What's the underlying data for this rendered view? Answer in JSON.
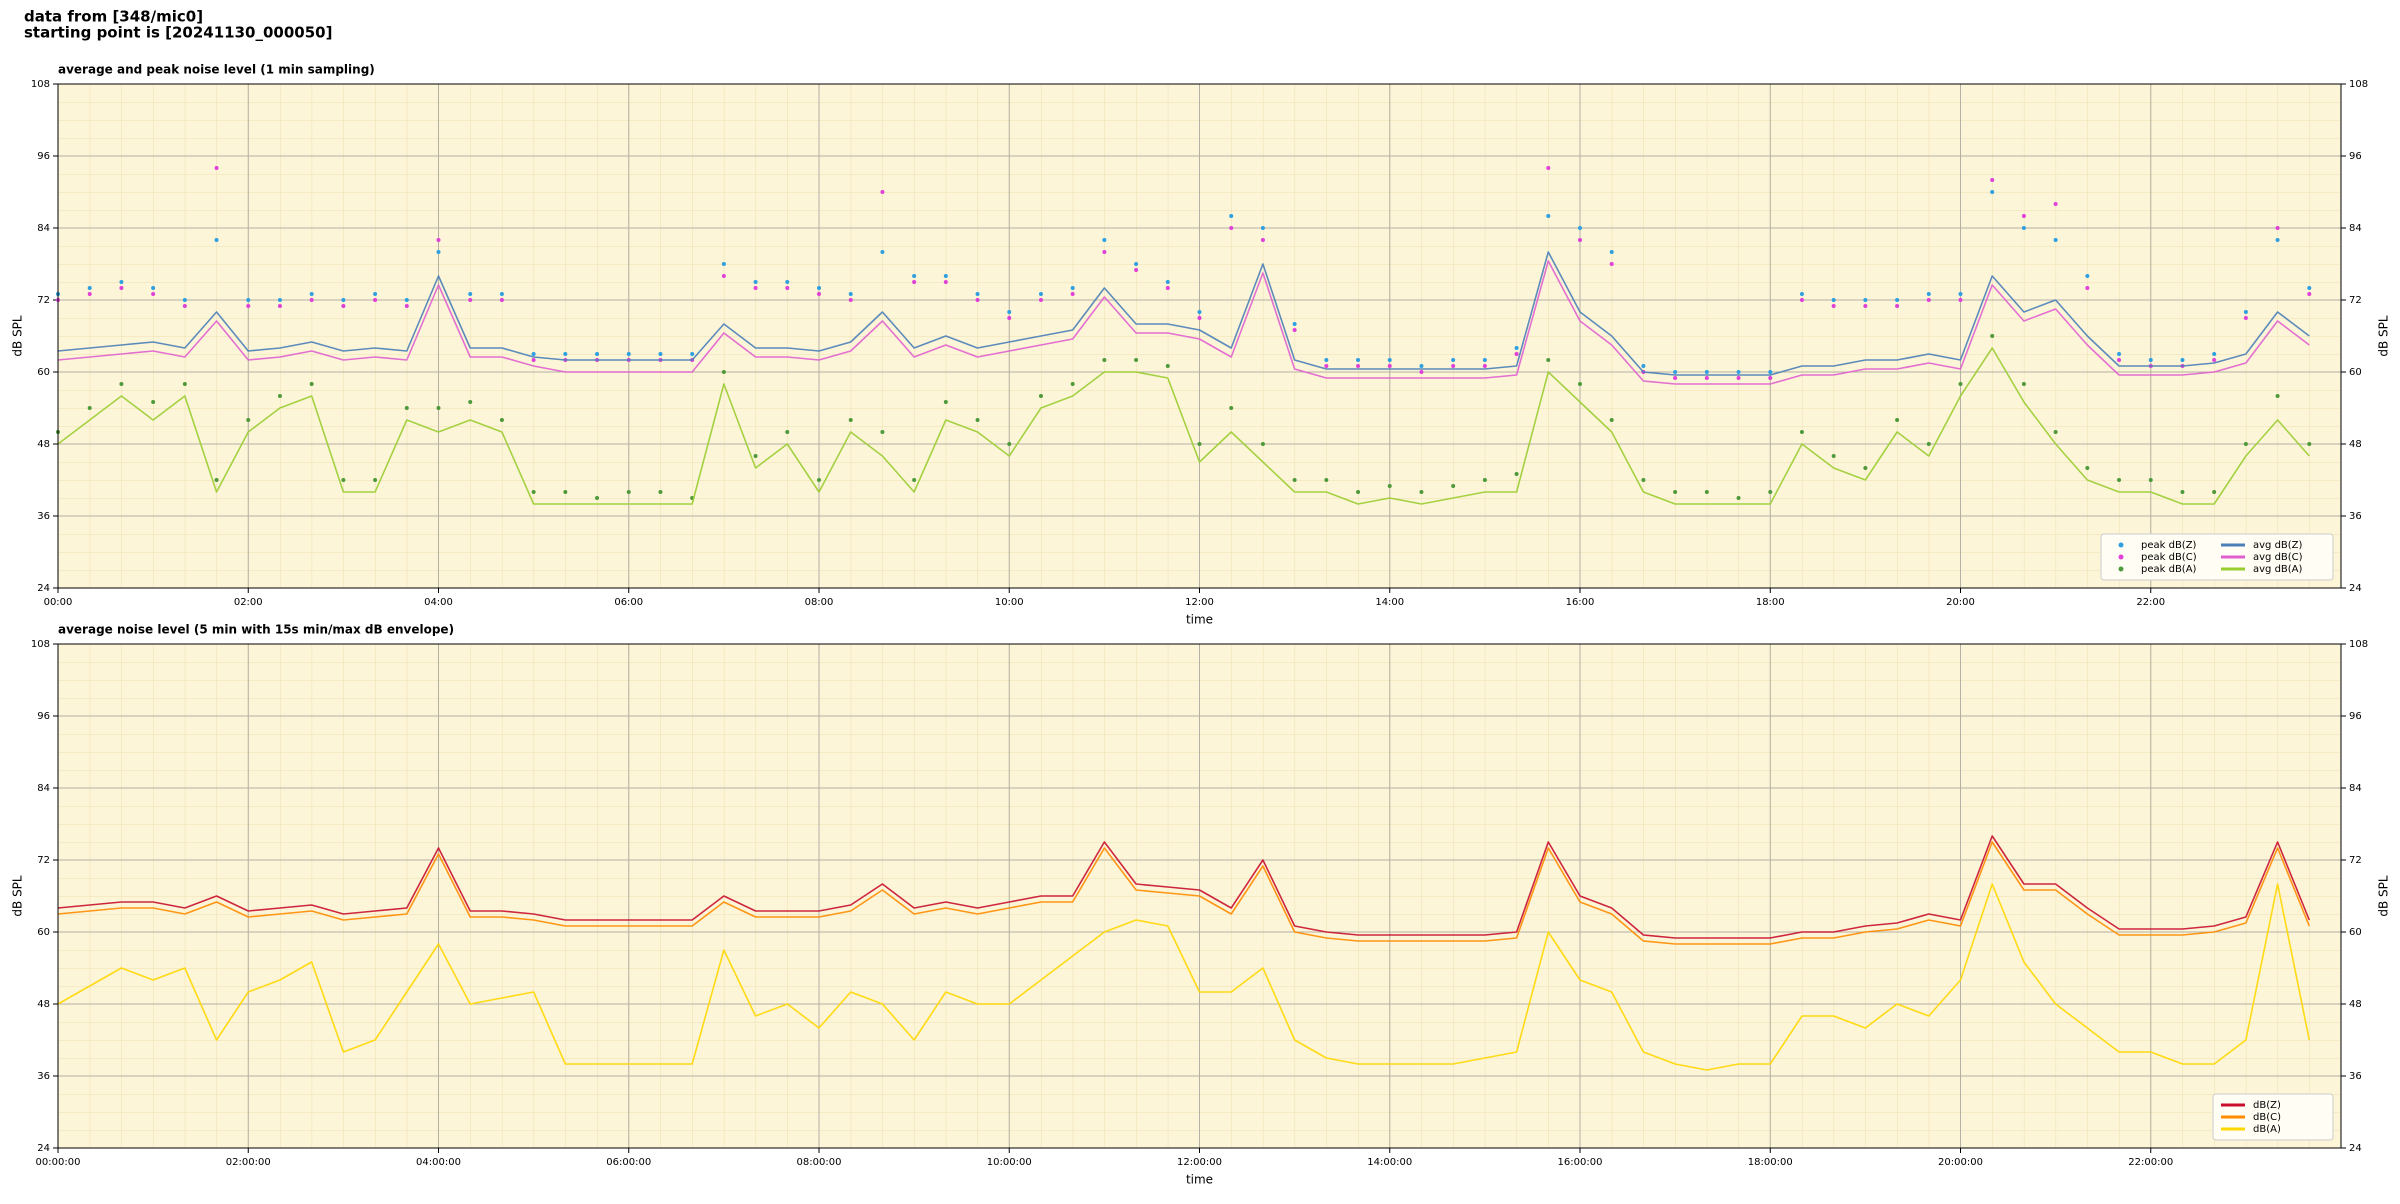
{
  "header": {
    "lines": [
      "data from [348/mic0]",
      "starting point is [20241130_000050]"
    ]
  },
  "chart_data": [
    {
      "type": "line",
      "title": "average and peak noise level (1 min sampling)",
      "xlabel": "time",
      "ylabel": "dB SPL",
      "x": [
        0,
        20,
        40,
        60,
        80,
        100,
        120,
        140,
        160,
        180,
        200,
        220,
        240,
        260,
        280,
        300,
        320,
        340,
        360,
        380,
        400,
        420,
        440,
        460,
        480,
        500,
        520,
        540,
        560,
        580,
        600,
        620,
        640,
        660,
        680,
        700,
        720,
        740,
        760,
        780,
        800,
        820,
        840,
        860,
        880,
        900,
        920,
        940,
        960,
        980,
        1000,
        1020,
        1040,
        1060,
        1080,
        1100,
        1120,
        1140,
        1160,
        1180,
        1200,
        1220,
        1240,
        1260,
        1280,
        1300,
        1320,
        1340,
        1360,
        1380,
        1400,
        1420
      ],
      "xlim": [
        0,
        1440
      ],
      "xticks": [
        {
          "value": 0,
          "label": "00:00"
        },
        {
          "value": 120,
          "label": "02:00"
        },
        {
          "value": 240,
          "label": "04:00"
        },
        {
          "value": 360,
          "label": "06:00"
        },
        {
          "value": 480,
          "label": "08:00"
        },
        {
          "value": 600,
          "label": "10:00"
        },
        {
          "value": 720,
          "label": "12:00"
        },
        {
          "value": 840,
          "label": "14:00"
        },
        {
          "value": 960,
          "label": "16:00"
        },
        {
          "value": 1080,
          "label": "18:00"
        },
        {
          "value": 1200,
          "label": "20:00"
        },
        {
          "value": 1320,
          "label": "22:00"
        }
      ],
      "ylim": [
        24,
        108
      ],
      "yticks": [
        24,
        36,
        48,
        60,
        72,
        84,
        96,
        108
      ],
      "grid": true,
      "legend": "lower right",
      "series": [
        {
          "name": "peak dB(Z)",
          "style": "dots",
          "color": "#2e9fe0",
          "values": [
            73,
            74,
            75,
            74,
            72,
            82,
            72,
            72,
            73,
            72,
            73,
            72,
            80,
            73,
            73,
            63,
            63,
            63,
            63,
            63,
            63,
            78,
            75,
            75,
            74,
            73,
            80,
            76,
            76,
            73,
            70,
            73,
            74,
            82,
            78,
            75,
            70,
            86,
            84,
            68,
            62,
            62,
            62,
            61,
            62,
            62,
            64,
            86,
            84,
            80,
            61,
            60,
            60,
            60,
            60,
            73,
            72,
            72,
            72,
            73,
            73,
            90,
            84,
            82,
            76,
            63,
            62,
            62,
            63,
            70,
            82,
            74
          ]
        },
        {
          "name": "peak dB(C)",
          "style": "dots",
          "color": "#e040d8",
          "values": [
            72,
            73,
            74,
            73,
            71,
            94,
            71,
            71,
            72,
            71,
            72,
            71,
            82,
            72,
            72,
            62,
            62,
            62,
            62,
            62,
            62,
            76,
            74,
            74,
            73,
            72,
            90,
            75,
            75,
            72,
            69,
            72,
            73,
            80,
            77,
            74,
            69,
            84,
            82,
            67,
            61,
            61,
            61,
            60,
            61,
            61,
            63,
            94,
            82,
            78,
            60,
            59,
            59,
            59,
            59,
            72,
            71,
            71,
            71,
            72,
            72,
            92,
            86,
            88,
            74,
            62,
            61,
            61,
            62,
            69,
            84,
            73
          ]
        },
        {
          "name": "peak dB(A)",
          "style": "dots",
          "color": "#4e9a3a",
          "values": [
            50,
            54,
            58,
            55,
            58,
            42,
            52,
            56,
            58,
            42,
            42,
            54,
            54,
            55,
            52,
            40,
            40,
            39,
            40,
            40,
            39,
            60,
            46,
            50,
            42,
            52,
            50,
            42,
            55,
            52,
            48,
            56,
            58,
            62,
            62,
            61,
            48,
            54,
            48,
            42,
            42,
            40,
            41,
            40,
            41,
            42,
            43,
            62,
            58,
            52,
            42,
            40,
            40,
            39,
            40,
            50,
            46,
            44,
            52,
            48,
            58,
            66,
            58,
            50,
            44,
            42,
            42,
            40,
            40,
            48,
            56,
            48
          ]
        },
        {
          "name": "avg dB(Z)",
          "style": "line",
          "color": "#4a7fb8",
          "values": [
            63.5,
            64,
            64.5,
            65,
            64,
            70,
            63.5,
            64,
            65,
            63.5,
            64,
            63.5,
            76,
            64,
            64,
            62.5,
            62,
            62,
            62,
            62,
            62,
            68,
            64,
            64,
            63.5,
            65,
            70,
            64,
            66,
            64,
            65,
            66,
            67,
            74,
            68,
            68,
            67,
            64,
            78,
            62,
            60.5,
            60.5,
            60.5,
            60.5,
            60.5,
            60.5,
            61,
            80,
            70,
            66,
            60,
            59.5,
            59.5,
            59.5,
            59.5,
            61,
            61,
            62,
            62,
            63,
            62,
            76,
            70,
            72,
            66,
            61,
            61,
            61,
            61.5,
            63,
            70,
            66
          ]
        },
        {
          "name": "avg dB(C)",
          "style": "line",
          "color": "#e060d0",
          "values": [
            62,
            62.5,
            63,
            63.5,
            62.5,
            68.5,
            62,
            62.5,
            63.5,
            62,
            62.5,
            62,
            74.5,
            62.5,
            62.5,
            61,
            60,
            60,
            60,
            60,
            60,
            66.5,
            62.5,
            62.5,
            62,
            63.5,
            68.5,
            62.5,
            64.5,
            62.5,
            63.5,
            64.5,
            65.5,
            72.5,
            66.5,
            66.5,
            65.5,
            62.5,
            76.5,
            60.5,
            59,
            59,
            59,
            59,
            59,
            59,
            59.5,
            78.5,
            68.5,
            64.5,
            58.5,
            58,
            58,
            58,
            58,
            59.5,
            59.5,
            60.5,
            60.5,
            61.5,
            60.5,
            74.5,
            68.5,
            70.5,
            64.5,
            59.5,
            59.5,
            59.5,
            60,
            61.5,
            68.5,
            64.5
          ]
        },
        {
          "name": "avg dB(A)",
          "style": "line",
          "color": "#9acd32",
          "values": [
            48,
            52,
            56,
            52,
            56,
            40,
            50,
            54,
            56,
            40,
            40,
            52,
            50,
            52,
            50,
            38,
            38,
            38,
            38,
            38,
            38,
            58,
            44,
            48,
            40,
            50,
            46,
            40,
            52,
            50,
            46,
            54,
            56,
            60,
            60,
            59,
            45,
            50,
            45,
            40,
            40,
            38,
            39,
            38,
            39,
            40,
            40,
            60,
            55,
            50,
            40,
            38,
            38,
            38,
            38,
            48,
            44,
            42,
            50,
            46,
            56,
            64,
            55,
            48,
            42,
            40,
            40,
            38,
            38,
            46,
            52,
            46
          ]
        }
      ]
    },
    {
      "type": "line",
      "title": "average noise level (5 min with 15s min/max dB envelope)",
      "xlabel": "time",
      "ylabel": "dB SPL",
      "x": [
        0,
        20,
        40,
        60,
        80,
        100,
        120,
        140,
        160,
        180,
        200,
        220,
        240,
        260,
        280,
        300,
        320,
        340,
        360,
        380,
        400,
        420,
        440,
        460,
        480,
        500,
        520,
        540,
        560,
        580,
        600,
        620,
        640,
        660,
        680,
        700,
        720,
        740,
        760,
        780,
        800,
        820,
        840,
        860,
        880,
        900,
        920,
        940,
        960,
        980,
        1000,
        1020,
        1040,
        1060,
        1080,
        1100,
        1120,
        1140,
        1160,
        1180,
        1200,
        1220,
        1240,
        1260,
        1280,
        1300,
        1320,
        1340,
        1360,
        1380,
        1400,
        1420
      ],
      "xlim": [
        0,
        1440
      ],
      "xticks": [
        {
          "value": 0,
          "label": "00:00:00"
        },
        {
          "value": 120,
          "label": "02:00:00"
        },
        {
          "value": 240,
          "label": "04:00:00"
        },
        {
          "value": 360,
          "label": "06:00:00"
        },
        {
          "value": 480,
          "label": "08:00:00"
        },
        {
          "value": 600,
          "label": "10:00:00"
        },
        {
          "value": 720,
          "label": "12:00:00"
        },
        {
          "value": 840,
          "label": "14:00:00"
        },
        {
          "value": 960,
          "label": "16:00:00"
        },
        {
          "value": 1080,
          "label": "18:00:00"
        },
        {
          "value": 1200,
          "label": "20:00:00"
        },
        {
          "value": 1320,
          "label": "22:00:00"
        }
      ],
      "ylim": [
        24,
        108
      ],
      "yticks": [
        24,
        36,
        48,
        60,
        72,
        84,
        96,
        108
      ],
      "grid": true,
      "legend": "lower right",
      "series": [
        {
          "name": "dB(Z)",
          "style": "line",
          "color": "#c8102e",
          "values": [
            64,
            64.5,
            65,
            65,
            64,
            66,
            63.5,
            64,
            64.5,
            63,
            63.5,
            64,
            74,
            63.5,
            63.5,
            63,
            62,
            62,
            62,
            62,
            62,
            66,
            63.5,
            63.5,
            63.5,
            64.5,
            68,
            64,
            65,
            64,
            65,
            66,
            66,
            75,
            68,
            67.5,
            67,
            64,
            72,
            61,
            60,
            59.5,
            59.5,
            59.5,
            59.5,
            59.5,
            60,
            75,
            66,
            64,
            59.5,
            59,
            59,
            59,
            59,
            60,
            60,
            61,
            61.5,
            63,
            62,
            76,
            68,
            68,
            64,
            60.5,
            60.5,
            60.5,
            61,
            62.5,
            75,
            62
          ]
        },
        {
          "name": "dB(C)",
          "style": "line",
          "color": "#ff8c00",
          "values": [
            63,
            63.5,
            64,
            64,
            63,
            65,
            62.5,
            63,
            63.5,
            62,
            62.5,
            63,
            73,
            62.5,
            62.5,
            62,
            61,
            61,
            61,
            61,
            61,
            65,
            62.5,
            62.5,
            62.5,
            63.5,
            67,
            63,
            64,
            63,
            64,
            65,
            65,
            74,
            67,
            66.5,
            66,
            63,
            71,
            60,
            59,
            58.5,
            58.5,
            58.5,
            58.5,
            58.5,
            59,
            74,
            65,
            63,
            58.5,
            58,
            58,
            58,
            58,
            59,
            59,
            60,
            60.5,
            62,
            61,
            75,
            67,
            67,
            63,
            59.5,
            59.5,
            59.5,
            60,
            61.5,
            74,
            61
          ]
        },
        {
          "name": "dB(A)",
          "style": "line",
          "color": "#ffd700",
          "values": [
            48,
            51,
            54,
            52,
            54,
            42,
            50,
            52,
            55,
            40,
            42,
            50,
            58,
            48,
            49,
            50,
            38,
            38,
            38,
            38,
            38,
            57,
            46,
            48,
            44,
            50,
            48,
            42,
            50,
            48,
            48,
            52,
            56,
            60,
            62,
            61,
            50,
            50,
            54,
            42,
            39,
            38,
            38,
            38,
            38,
            39,
            40,
            60,
            52,
            50,
            40,
            38,
            37,
            38,
            38,
            46,
            46,
            44,
            48,
            46,
            52,
            68,
            55,
            48,
            44,
            40,
            40,
            38,
            38,
            42,
            68,
            42
          ]
        }
      ]
    }
  ]
}
